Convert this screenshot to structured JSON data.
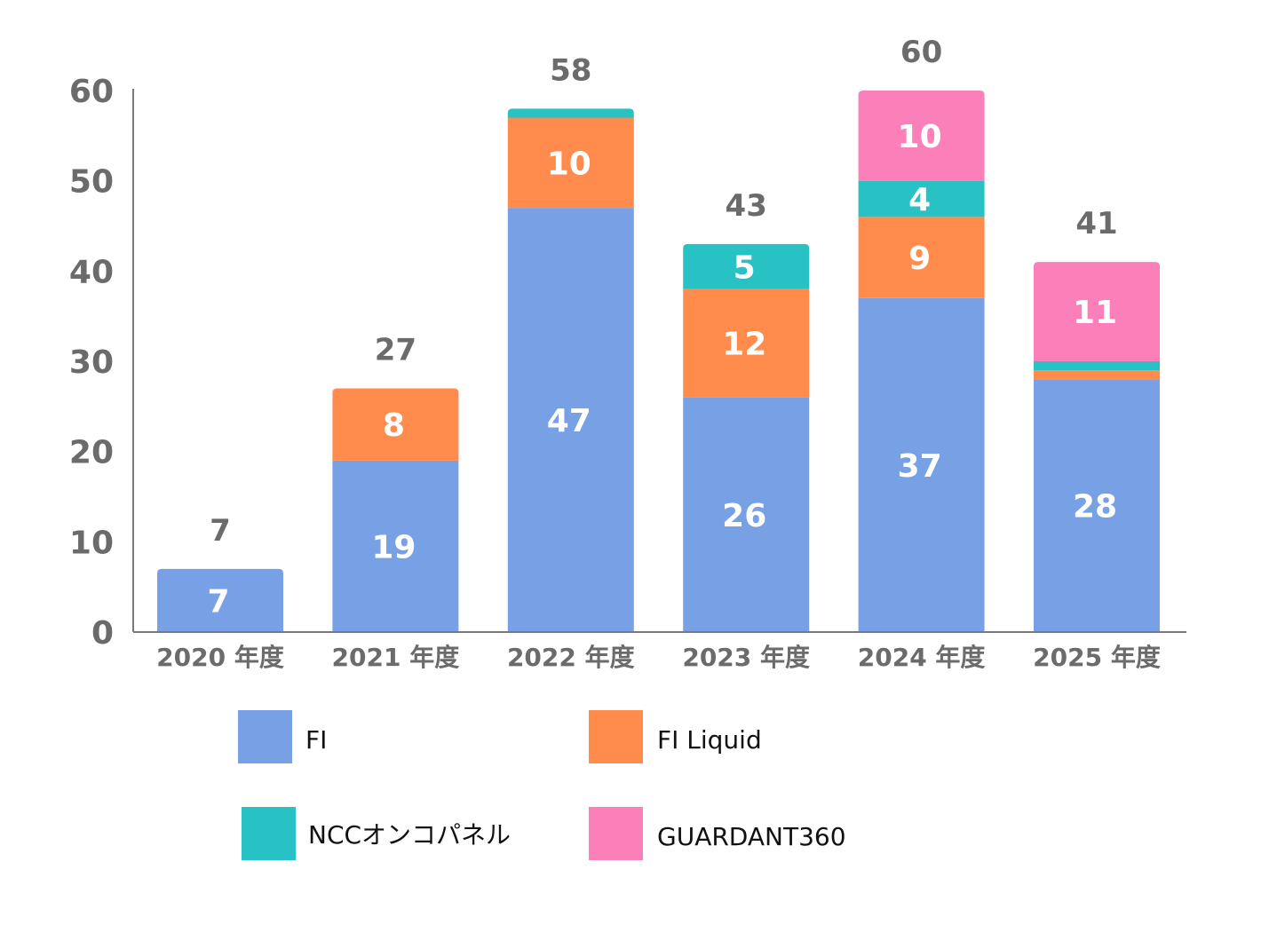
{
  "chart_data": {
    "type": "bar",
    "stacked": true,
    "categories": [
      "2020 年度",
      "2021 年度",
      "2022 年度",
      "2023 年度",
      "2024 年度",
      "2025 年度"
    ],
    "series": [
      {
        "name": "FI",
        "color": "#78a1e5",
        "values": [
          7,
          19,
          47,
          26,
          37,
          28
        ]
      },
      {
        "name": "FI Liquid",
        "color": "#ff8b4d",
        "values": [
          0,
          8,
          10,
          12,
          9,
          1
        ]
      },
      {
        "name": "NCCオンコパネル",
        "color": "#28c1c4",
        "values": [
          0,
          0,
          1,
          5,
          4,
          1
        ]
      },
      {
        "name": "GUARDANT360",
        "color": "#fb7fb9",
        "values": [
          0,
          0,
          0,
          0,
          10,
          11
        ]
      }
    ],
    "segment_labels": [
      [
        "7",
        "19",
        "47",
        "26",
        "37",
        "28"
      ],
      [
        "",
        "8",
        "10",
        "12",
        "9",
        ""
      ],
      [
        "",
        "",
        "",
        "5",
        "4",
        ""
      ],
      [
        "",
        "",
        "",
        "",
        "10",
        "11"
      ]
    ],
    "totals": [
      "7",
      "27",
      "58",
      "43",
      "60",
      "41"
    ],
    "yticks": [
      "0",
      "10",
      "20",
      "30",
      "40",
      "50",
      "60"
    ],
    "ylim": [
      0,
      60
    ],
    "grid": false,
    "legend_position": "bottom",
    "title": "",
    "xlabel": "",
    "ylabel": ""
  }
}
